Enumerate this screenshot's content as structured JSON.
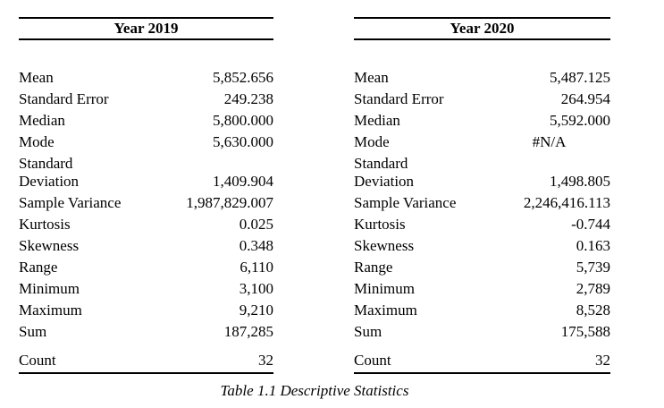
{
  "page": {
    "background": "#ffffff",
    "text_color": "#000000",
    "rule_color": "#000000"
  },
  "caption": "Table 1.1 Descriptive Statistics",
  "tables": [
    {
      "title": "Year 2019",
      "rows": [
        {
          "label": "Mean",
          "value": "5,852.656"
        },
        {
          "label": "Standard Error",
          "value": "249.238"
        },
        {
          "label": "Median",
          "value": "5,800.000"
        },
        {
          "label": "Mode",
          "value": "5,630.000"
        },
        {
          "label": "Standard\nDeviation",
          "value": "1,409.904"
        },
        {
          "label": "Sample Variance",
          "value": "1,987,829.007"
        },
        {
          "label": "Kurtosis",
          "value": "0.025"
        },
        {
          "label": "Skewness",
          "value": "0.348"
        },
        {
          "label": "Range",
          "value": "6,110"
        },
        {
          "label": "Minimum",
          "value": "3,100"
        },
        {
          "label": "Maximum",
          "value": "9,210"
        },
        {
          "label": "Sum",
          "value": "187,285"
        },
        {
          "label": "Count",
          "value": "32",
          "is_count": true
        }
      ]
    },
    {
      "title": "Year 2020",
      "rows": [
        {
          "label": "Mean",
          "value": "5,487.125"
        },
        {
          "label": "Standard Error",
          "value": "264.954"
        },
        {
          "label": "Median",
          "value": "5,592.000"
        },
        {
          "label": "Mode",
          "value": "#N/A",
          "value_align": "center"
        },
        {
          "label": "Standard\nDeviation",
          "value": "1,498.805"
        },
        {
          "label": "Sample Variance",
          "value": "2,246,416.113"
        },
        {
          "label": "Kurtosis",
          "value": "-0.744"
        },
        {
          "label": "Skewness",
          "value": "0.163"
        },
        {
          "label": "Range",
          "value": "5,739"
        },
        {
          "label": "Minimum",
          "value": "2,789"
        },
        {
          "label": "Maximum",
          "value": "8,528"
        },
        {
          "label": "Sum",
          "value": "175,588"
        },
        {
          "label": "Count",
          "value": "32",
          "is_count": true
        }
      ]
    }
  ]
}
